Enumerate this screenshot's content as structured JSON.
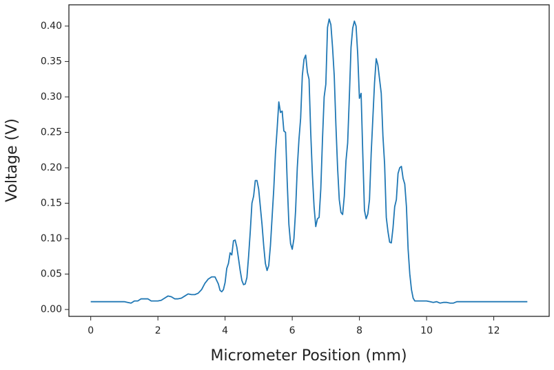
{
  "chart_data": {
    "type": "line",
    "x_label": "Micrometer Position (mm)",
    "y_label": "Voltage (V)",
    "x": [
      0,
      0.5,
      1,
      1.1,
      1.2,
      1.3,
      1.4,
      1.5,
      1.6,
      1.7,
      1.8,
      1.9,
      2,
      2.1,
      2.2,
      2.3,
      2.4,
      2.5,
      2.6,
      2.7,
      2.8,
      2.9,
      3,
      3.1,
      3.2,
      3.3,
      3.4,
      3.5,
      3.6,
      3.7,
      3.8,
      3.85,
      3.9,
      3.95,
      4,
      4.05,
      4.1,
      4.15,
      4.2,
      4.25,
      4.3,
      4.35,
      4.4,
      4.45,
      4.5,
      4.55,
      4.6,
      4.65,
      4.7,
      4.75,
      4.8,
      4.85,
      4.9,
      4.95,
      5,
      5.05,
      5.1,
      5.15,
      5.2,
      5.25,
      5.3,
      5.35,
      5.4,
      5.45,
      5.5,
      5.55,
      5.6,
      5.65,
      5.7,
      5.75,
      5.8,
      5.85,
      5.9,
      5.95,
      6,
      6.05,
      6.1,
      6.15,
      6.2,
      6.25,
      6.3,
      6.35,
      6.4,
      6.45,
      6.5,
      6.55,
      6.6,
      6.65,
      6.7,
      6.75,
      6.8,
      6.85,
      6.9,
      6.95,
      7,
      7.05,
      7.1,
      7.15,
      7.2,
      7.25,
      7.3,
      7.35,
      7.4,
      7.45,
      7.5,
      7.55,
      7.6,
      7.65,
      7.7,
      7.75,
      7.8,
      7.85,
      7.9,
      7.95,
      8,
      8.05,
      8.1,
      8.15,
      8.2,
      8.25,
      8.3,
      8.35,
      8.4,
      8.45,
      8.5,
      8.55,
      8.6,
      8.65,
      8.7,
      8.75,
      8.8,
      8.85,
      8.9,
      8.95,
      9,
      9.05,
      9.1,
      9.15,
      9.2,
      9.25,
      9.3,
      9.35,
      9.4,
      9.45,
      9.5,
      9.55,
      9.6,
      9.65,
      9.8,
      10,
      10.1,
      10.2,
      10.3,
      10.4,
      10.5,
      10.6,
      10.7,
      10.8,
      10.9,
      11,
      13
    ],
    "values": [
      0.011,
      0.011,
      0.011,
      0.01,
      0.009,
      0.012,
      0.012,
      0.015,
      0.015,
      0.015,
      0.012,
      0.012,
      0.012,
      0.013,
      0.016,
      0.019,
      0.018,
      0.015,
      0.015,
      0.016,
      0.019,
      0.022,
      0.021,
      0.021,
      0.023,
      0.028,
      0.037,
      0.043,
      0.046,
      0.046,
      0.036,
      0.027,
      0.025,
      0.028,
      0.038,
      0.058,
      0.065,
      0.08,
      0.077,
      0.097,
      0.098,
      0.088,
      0.072,
      0.055,
      0.041,
      0.035,
      0.036,
      0.045,
      0.075,
      0.11,
      0.15,
      0.16,
      0.182,
      0.182,
      0.17,
      0.145,
      0.12,
      0.09,
      0.065,
      0.055,
      0.062,
      0.09,
      0.13,
      0.17,
      0.22,
      0.255,
      0.293,
      0.278,
      0.28,
      0.252,
      0.25,
      0.18,
      0.12,
      0.093,
      0.085,
      0.1,
      0.14,
      0.2,
      0.24,
      0.27,
      0.33,
      0.353,
      0.359,
      0.335,
      0.325,
      0.25,
      0.19,
      0.145,
      0.117,
      0.128,
      0.13,
      0.17,
      0.24,
      0.3,
      0.318,
      0.398,
      0.41,
      0.402,
      0.37,
      0.33,
      0.26,
      0.2,
      0.155,
      0.137,
      0.134,
      0.16,
      0.21,
      0.235,
      0.3,
      0.37,
      0.397,
      0.407,
      0.4,
      0.36,
      0.298,
      0.305,
      0.22,
      0.14,
      0.128,
      0.135,
      0.155,
      0.22,
      0.27,
      0.32,
      0.354,
      0.345,
      0.325,
      0.305,
      0.245,
      0.205,
      0.13,
      0.11,
      0.095,
      0.094,
      0.115,
      0.145,
      0.155,
      0.192,
      0.2,
      0.202,
      0.185,
      0.177,
      0.145,
      0.085,
      0.05,
      0.028,
      0.016,
      0.012,
      0.012,
      0.012,
      0.011,
      0.01,
      0.011,
      0.009,
      0.01,
      0.01,
      0.009,
      0.009,
      0.011,
      0.011,
      0.011
    ],
    "color": "#1f77b4",
    "xlim": [
      -0.65,
      13.65
    ],
    "xticks": [
      0,
      2,
      4,
      6,
      8,
      10,
      12
    ],
    "ylim": [
      -0.0097,
      0.43
    ],
    "yticks": [
      {
        "value": 0,
        "label": "0.00"
      },
      {
        "value": 0.05,
        "label": "0.05"
      },
      {
        "value": 0.1,
        "label": "0.10"
      },
      {
        "value": 0.15,
        "label": "0.15"
      },
      {
        "value": 0.2,
        "label": "0.20"
      },
      {
        "value": 0.25,
        "label": "0.25"
      },
      {
        "value": 0.3,
        "label": "0.30"
      },
      {
        "value": 0.35,
        "label": "0.35"
      },
      {
        "value": 0.4,
        "label": "0.40"
      }
    ],
    "grid": false
  }
}
